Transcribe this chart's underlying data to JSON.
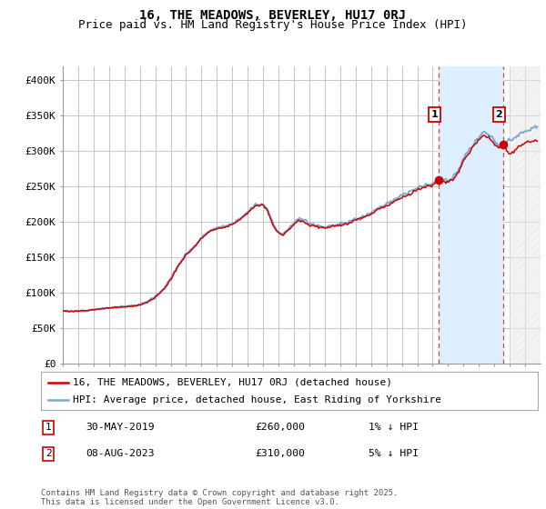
{
  "title": "16, THE MEADOWS, BEVERLEY, HU17 0RJ",
  "subtitle": "Price paid vs. HM Land Registry's House Price Index (HPI)",
  "ylim": [
    0,
    420000
  ],
  "yticks": [
    0,
    50000,
    100000,
    150000,
    200000,
    250000,
    300000,
    350000,
    400000
  ],
  "ytick_labels": [
    "£0",
    "£50K",
    "£100K",
    "£150K",
    "£200K",
    "£250K",
    "£300K",
    "£350K",
    "£400K"
  ],
  "hpi_color": "#7aaad0",
  "price_color": "#cc0000",
  "grid_color": "#bbbbbb",
  "bg_color": "#ffffff",
  "shade_color": "#ddeeff",
  "hatch_color": "#cccccc",
  "vline_color": "#dd4444",
  "sale1_x": 2019.41,
  "sale1_price": 260000,
  "sale1_hpi": 260000,
  "sale1_text": "30-MAY-2019",
  "sale1_pct": "1% ↓ HPI",
  "sale2_x": 2023.6,
  "sale2_price": 310000,
  "sale2_hpi": 310000,
  "sale2_text": "08-AUG-2023",
  "sale2_pct": "5% ↓ HPI",
  "legend_line1": "16, THE MEADOWS, BEVERLEY, HU17 0RJ (detached house)",
  "legend_line2": "HPI: Average price, detached house, East Riding of Yorkshire",
  "footnote": "Contains HM Land Registry data © Crown copyright and database right 2025.\nThis data is licensed under the Open Government Licence v3.0.",
  "title_fontsize": 10,
  "subtitle_fontsize": 9,
  "tick_fontsize": 8,
  "legend_fontsize": 8,
  "footnote_fontsize": 6.5,
  "xlim_start": 1995,
  "xlim_end": 2026,
  "hatch_start": 2024.0
}
